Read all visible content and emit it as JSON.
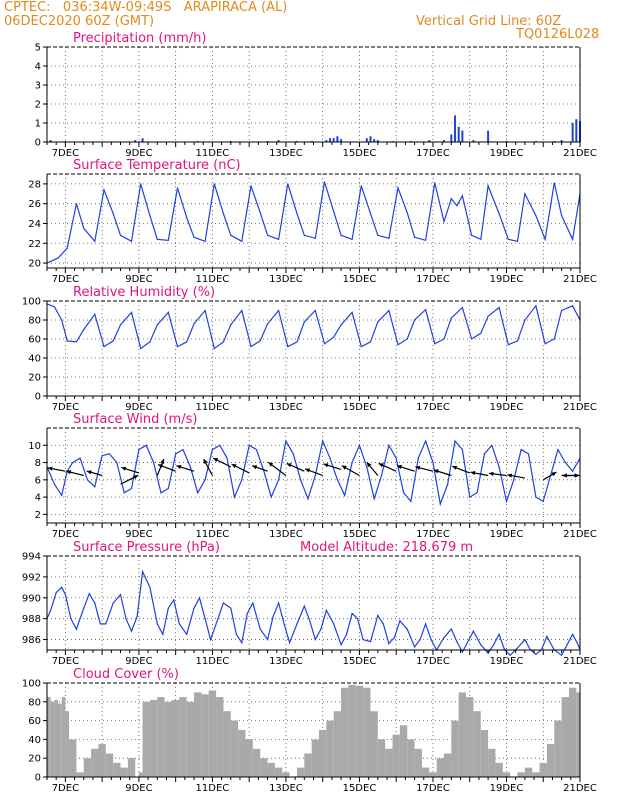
{
  "header": {
    "line1": "CPTEC:   036:34W-09:49S   ARAPIRACA (AL)",
    "line2": "06DEC2020 60Z (GMT)",
    "right1": "Vertical Grid Line: 60Z",
    "right2": "TQ0126L028"
  },
  "extra_label": "Model Altitude: 218.679 m",
  "colors": {
    "header": "#e08a1e",
    "title": "#e0147c",
    "line": "#2040e0",
    "cloud": "#a9a9a9"
  },
  "chart_data": [
    {
      "type": "bar",
      "title": "Precipitation (mm/h)",
      "ylim": [
        0,
        5
      ],
      "yticks": [
        0,
        1,
        2,
        3,
        4,
        5
      ],
      "xlim": [
        6.5,
        21
      ],
      "xticks": [
        "7DEC",
        "9DEC",
        "11DEC",
        "13DEC",
        "15DEC",
        "17DEC",
        "19DEC",
        "21DEC"
      ],
      "x": [
        6.6,
        7.0,
        8.9,
        9.1,
        10.6,
        11.5,
        12.5,
        12.8,
        13.3,
        13.7,
        14.1,
        14.2,
        14.3,
        14.4,
        14.5,
        15.2,
        15.3,
        15.4,
        15.5,
        15.9,
        16.4,
        16.9,
        17.3,
        17.5,
        17.6,
        17.7,
        17.8,
        18.1,
        18.5,
        19.0,
        19.8,
        20.3,
        20.5,
        20.8,
        20.9,
        21.0
      ],
      "values": [
        0.1,
        0.05,
        0.1,
        0.2,
        0.05,
        0.05,
        0.05,
        0.1,
        0.05,
        0.05,
        0.1,
        0.2,
        0.2,
        0.3,
        0.15,
        0.2,
        0.3,
        0.15,
        0.1,
        0.05,
        0.05,
        0.1,
        0.1,
        0.4,
        1.4,
        0.8,
        0.6,
        0.1,
        0.6,
        0.05,
        0.05,
        0.05,
        0.1,
        1.0,
        1.2,
        1.1
      ]
    },
    {
      "type": "line",
      "title": "Surface Temperature (nC)",
      "ylim": [
        19.5,
        29
      ],
      "yticks": [
        20,
        22,
        24,
        26,
        28
      ],
      "xlim": [
        6.5,
        21
      ],
      "xticks": [
        "7DEC",
        "9DEC",
        "11DEC",
        "13DEC",
        "15DEC",
        "17DEC",
        "19DEC",
        "21DEC"
      ],
      "x": [
        6.5,
        6.8,
        7.05,
        7.3,
        7.5,
        7.8,
        8.05,
        8.3,
        8.5,
        8.8,
        9.05,
        9.3,
        9.5,
        9.8,
        10.05,
        10.3,
        10.5,
        10.8,
        11.05,
        11.3,
        11.5,
        11.8,
        12.05,
        12.3,
        12.5,
        12.8,
        13.05,
        13.3,
        13.5,
        13.8,
        14.05,
        14.3,
        14.5,
        14.8,
        15.05,
        15.3,
        15.5,
        15.8,
        16.05,
        16.3,
        16.5,
        16.8,
        17.05,
        17.3,
        17.5,
        17.65,
        17.8,
        18.05,
        18.3,
        18.5,
        18.8,
        19.05,
        19.3,
        19.5,
        19.8,
        20.05,
        20.3,
        20.5,
        20.8,
        21.0
      ],
      "values": [
        20.0,
        20.5,
        21.5,
        26.0,
        23.5,
        22.2,
        27.4,
        25.0,
        22.8,
        22.2,
        28.0,
        24.8,
        22.4,
        22.3,
        27.6,
        24.6,
        22.6,
        22.2,
        28.0,
        25.0,
        22.8,
        22.2,
        27.8,
        25.1,
        22.8,
        22.4,
        28.0,
        25.0,
        22.8,
        22.5,
        28.2,
        25.2,
        22.8,
        22.4,
        27.8,
        25.0,
        22.8,
        22.5,
        27.6,
        25.1,
        22.6,
        22.3,
        28.1,
        24.2,
        26.5,
        25.8,
        26.8,
        22.8,
        22.4,
        27.8,
        25.0,
        22.4,
        22.2,
        27.0,
        24.8,
        22.4,
        28.1,
        24.8,
        22.4,
        27.0
      ]
    },
    {
      "type": "line",
      "title": "Relative Humidity (%)",
      "ylim": [
        0,
        100
      ],
      "yticks": [
        0,
        20,
        40,
        60,
        80,
        100
      ],
      "xlim": [
        6.5,
        21
      ],
      "xticks": [
        "7DEC",
        "9DEC",
        "11DEC",
        "13DEC",
        "15DEC",
        "17DEC",
        "19DEC",
        "21DEC"
      ],
      "x": [
        6.5,
        6.7,
        6.9,
        7.05,
        7.3,
        7.5,
        7.8,
        8.05,
        8.3,
        8.5,
        8.8,
        9.05,
        9.3,
        9.5,
        9.8,
        10.05,
        10.3,
        10.5,
        10.8,
        11.05,
        11.3,
        11.5,
        11.8,
        12.05,
        12.3,
        12.5,
        12.8,
        13.05,
        13.3,
        13.5,
        13.8,
        14.05,
        14.3,
        14.5,
        14.8,
        15.05,
        15.3,
        15.5,
        15.8,
        16.05,
        16.3,
        16.5,
        16.8,
        17.05,
        17.3,
        17.5,
        17.8,
        18.05,
        18.3,
        18.5,
        18.8,
        19.05,
        19.3,
        19.5,
        19.8,
        20.05,
        20.3,
        20.5,
        20.8,
        21.0
      ],
      "values": [
        97,
        94,
        80,
        58,
        57,
        70,
        86,
        52,
        58,
        75,
        88,
        50,
        57,
        75,
        88,
        52,
        57,
        76,
        90,
        50,
        57,
        75,
        90,
        52,
        58,
        76,
        90,
        52,
        57,
        78,
        90,
        55,
        62,
        75,
        88,
        52,
        57,
        78,
        90,
        54,
        60,
        80,
        91,
        55,
        60,
        82,
        93,
        60,
        66,
        84,
        93,
        54,
        58,
        80,
        95,
        55,
        60,
        90,
        95,
        80
      ]
    },
    {
      "type": "line",
      "title": "Surface Wind (m/s)",
      "ylim": [
        1,
        12
      ],
      "yticks": [
        2,
        4,
        6,
        8,
        10
      ],
      "xlim": [
        6.5,
        21
      ],
      "xticks": [
        "7DEC",
        "9DEC",
        "11DEC",
        "13DEC",
        "15DEC",
        "17DEC",
        "19DEC",
        "21DEC"
      ],
      "x": [
        6.5,
        6.7,
        6.9,
        7.05,
        7.2,
        7.4,
        7.6,
        7.8,
        8.0,
        8.2,
        8.4,
        8.6,
        8.8,
        9.0,
        9.2,
        9.4,
        9.6,
        9.8,
        10.0,
        10.2,
        10.4,
        10.6,
        10.8,
        11.0,
        11.2,
        11.4,
        11.6,
        11.8,
        12.0,
        12.2,
        12.4,
        12.6,
        12.8,
        13.0,
        13.2,
        13.4,
        13.6,
        13.8,
        14.0,
        14.2,
        14.4,
        14.6,
        14.8,
        15.0,
        15.2,
        15.4,
        15.6,
        15.8,
        16.0,
        16.2,
        16.4,
        16.6,
        16.8,
        17.0,
        17.2,
        17.4,
        17.6,
        17.8,
        18.0,
        18.2,
        18.4,
        18.6,
        18.8,
        19.0,
        19.2,
        19.4,
        19.6,
        19.8,
        20.0,
        20.2,
        20.4,
        20.6,
        20.8,
        21.0
      ],
      "values": [
        7.5,
        5.5,
        4.2,
        7.0,
        8.0,
        8.5,
        6.0,
        5.2,
        8.8,
        9.0,
        8.0,
        4.5,
        5.0,
        9.5,
        10.0,
        8.0,
        4.5,
        5.0,
        9.0,
        9.5,
        7.5,
        4.5,
        6.0,
        9.5,
        10.0,
        8.5,
        4.0,
        6.0,
        10.0,
        9.5,
        7.0,
        4.0,
        6.0,
        10.5,
        9.0,
        6.0,
        3.8,
        6.5,
        10.5,
        8.5,
        6.0,
        4.2,
        8.0,
        10.0,
        7.5,
        3.8,
        6.5,
        10.0,
        8.5,
        4.5,
        3.5,
        8.5,
        10.5,
        8.0,
        3.2,
        5.5,
        10.5,
        9.5,
        4.0,
        4.5,
        9.0,
        10.0,
        7.5,
        3.5,
        6.0,
        9.5,
        9.0,
        4.0,
        3.5,
        6.5,
        9.5,
        8.0,
        7.0,
        8.5
      ],
      "vectors": [
        {
          "x": 7.0,
          "y": 7.0,
          "dx": -0.8,
          "dy": 0.3
        },
        {
          "x": 7.5,
          "y": 6.5,
          "dx": -0.8,
          "dy": 0.4
        },
        {
          "x": 8.0,
          "y": 6.5,
          "dx": -0.7,
          "dy": 0.4
        },
        {
          "x": 8.5,
          "y": 5.5,
          "dx": 0.8,
          "dy": 0.8
        },
        {
          "x": 9.0,
          "y": 6.8,
          "dx": -0.8,
          "dy": 0.5
        },
        {
          "x": 9.5,
          "y": 6.5,
          "dx": 0.3,
          "dy": 1.5
        },
        {
          "x": 10.0,
          "y": 7.0,
          "dx": -0.8,
          "dy": 0.6
        },
        {
          "x": 10.5,
          "y": 7.0,
          "dx": -0.8,
          "dy": 0.5
        },
        {
          "x": 11.0,
          "y": 6.5,
          "dx": -0.4,
          "dy": 1.5
        },
        {
          "x": 11.5,
          "y": 7.5,
          "dx": -0.8,
          "dy": 0.8
        },
        {
          "x": 12.0,
          "y": 6.8,
          "dx": -0.8,
          "dy": 0.8
        },
        {
          "x": 12.5,
          "y": 7.0,
          "dx": -0.7,
          "dy": 0.5
        },
        {
          "x": 13.0,
          "y": 6.5,
          "dx": -0.8,
          "dy": 1.2
        },
        {
          "x": 13.5,
          "y": 7.0,
          "dx": -0.8,
          "dy": 0.7
        },
        {
          "x": 14.0,
          "y": 6.5,
          "dx": -0.8,
          "dy": 0.6
        },
        {
          "x": 14.5,
          "y": 7.2,
          "dx": -0.8,
          "dy": 0.5
        },
        {
          "x": 15.0,
          "y": 6.5,
          "dx": -0.8,
          "dy": 0.9
        },
        {
          "x": 15.5,
          "y": 6.5,
          "dx": -0.5,
          "dy": 1.2
        },
        {
          "x": 16.0,
          "y": 7.0,
          "dx": -0.8,
          "dy": 0.7
        },
        {
          "x": 16.5,
          "y": 7.0,
          "dx": -0.8,
          "dy": 0.5
        },
        {
          "x": 17.0,
          "y": 7.0,
          "dx": -0.8,
          "dy": 0.4
        },
        {
          "x": 17.5,
          "y": 6.5,
          "dx": -0.8,
          "dy": 0.5
        },
        {
          "x": 18.0,
          "y": 6.8,
          "dx": -0.8,
          "dy": 0.6
        },
        {
          "x": 18.5,
          "y": 6.5,
          "dx": -0.8,
          "dy": 0.3
        },
        {
          "x": 19.0,
          "y": 6.5,
          "dx": -0.8,
          "dy": 0.2
        },
        {
          "x": 19.5,
          "y": 6.2,
          "dx": -0.8,
          "dy": 0.3
        },
        {
          "x": 20.0,
          "y": 6.0,
          "dx": 0.6,
          "dy": 0.7
        },
        {
          "x": 20.5,
          "y": 6.5,
          "dx": 0.8,
          "dy": 0.0
        },
        {
          "x": 21.0,
          "y": 6.5,
          "dx": -0.8,
          "dy": 0.0
        }
      ]
    },
    {
      "type": "line",
      "title": "Surface Pressure (hPa)",
      "ylim": [
        985,
        994
      ],
      "yticks": [
        986,
        988,
        990,
        992,
        994
      ],
      "xlim": [
        6.5,
        21
      ],
      "xticks": [
        "7DEC",
        "9DEC",
        "11DEC",
        "13DEC",
        "15DEC",
        "17DEC",
        "19DEC",
        "21DEC"
      ],
      "x": [
        6.5,
        6.6,
        6.75,
        6.9,
        7.0,
        7.15,
        7.3,
        7.5,
        7.65,
        7.8,
        7.95,
        8.1,
        8.3,
        8.5,
        8.65,
        8.8,
        8.95,
        9.1,
        9.3,
        9.5,
        9.65,
        9.8,
        9.95,
        10.1,
        10.3,
        10.5,
        10.65,
        10.8,
        10.95,
        11.1,
        11.3,
        11.5,
        11.65,
        11.8,
        11.95,
        12.1,
        12.3,
        12.5,
        12.65,
        12.8,
        12.95,
        13.1,
        13.3,
        13.5,
        13.65,
        13.8,
        13.95,
        14.1,
        14.3,
        14.5,
        14.65,
        14.8,
        14.95,
        15.1,
        15.3,
        15.5,
        15.65,
        15.8,
        15.95,
        16.1,
        16.3,
        16.5,
        16.65,
        16.8,
        16.95,
        17.1,
        17.3,
        17.5,
        17.65,
        17.8,
        17.95,
        18.1,
        18.3,
        18.5,
        18.65,
        18.8,
        18.95,
        19.1,
        19.3,
        19.5,
        19.65,
        19.8,
        19.95,
        20.1,
        20.3,
        20.5,
        20.65,
        20.8,
        20.95,
        21.0
      ],
      "values": [
        988.0,
        988.8,
        990.5,
        991.0,
        990.3,
        988.0,
        987.0,
        989.0,
        990.4,
        989.5,
        987.5,
        987.5,
        989.5,
        990.3,
        988.0,
        986.8,
        988.2,
        992.5,
        991.0,
        987.5,
        986.5,
        989.0,
        989.8,
        987.5,
        986.5,
        989.0,
        990.0,
        988.0,
        986.0,
        987.5,
        989.5,
        989.0,
        986.5,
        985.7,
        988.5,
        989.5,
        987.0,
        986.0,
        988.2,
        989.5,
        987.5,
        985.7,
        987.5,
        989.2,
        987.8,
        986.0,
        987.0,
        988.8,
        987.5,
        985.5,
        986.5,
        988.5,
        988.0,
        986.0,
        985.8,
        988.3,
        987.5,
        985.6,
        986.2,
        987.8,
        987.0,
        985.3,
        986.0,
        987.5,
        986.0,
        985.0,
        986.2,
        987.0,
        985.8,
        984.8,
        985.8,
        986.8,
        985.5,
        984.7,
        985.5,
        986.5,
        985.0,
        984.5,
        985.2,
        986.0,
        985.0,
        984.6,
        985.0,
        986.3,
        985.0,
        984.5,
        985.5,
        986.5,
        985.5,
        985.0
      ]
    },
    {
      "type": "area",
      "title": "Cloud Cover (%)",
      "ylim": [
        0,
        100
      ],
      "yticks": [
        0,
        20,
        40,
        60,
        80,
        100
      ],
      "xlim": [
        6.5,
        21
      ],
      "xticks": [
        "7DEC",
        "9DEC",
        "11DEC",
        "13DEC",
        "15DEC",
        "17DEC",
        "19DEC",
        "21DEC"
      ],
      "x": [
        6.5,
        6.6,
        6.7,
        6.8,
        6.9,
        7.0,
        7.1,
        7.3,
        7.5,
        7.7,
        7.9,
        8.1,
        8.3,
        8.5,
        8.7,
        8.9,
        9.0,
        9.1,
        9.3,
        9.5,
        9.7,
        9.9,
        10.1,
        10.3,
        10.5,
        10.7,
        10.9,
        11.1,
        11.3,
        11.5,
        11.7,
        11.9,
        12.1,
        12.3,
        12.5,
        12.7,
        12.9,
        13.1,
        13.3,
        13.5,
        13.7,
        13.9,
        14.1,
        14.3,
        14.5,
        14.7,
        14.9,
        15.1,
        15.3,
        15.5,
        15.7,
        15.9,
        16.1,
        16.3,
        16.5,
        16.7,
        16.9,
        17.1,
        17.3,
        17.5,
        17.7,
        17.9,
        18.1,
        18.3,
        18.5,
        18.7,
        18.9,
        19.1,
        19.3,
        19.5,
        19.7,
        19.9,
        20.1,
        20.3,
        20.5,
        20.7,
        20.9,
        21.0
      ],
      "values": [
        85,
        80,
        82,
        78,
        85,
        70,
        40,
        5,
        20,
        30,
        35,
        25,
        15,
        10,
        20,
        0,
        5,
        80,
        82,
        85,
        80,
        82,
        85,
        80,
        90,
        88,
        92,
        85,
        70,
        60,
        50,
        40,
        30,
        20,
        15,
        10,
        5,
        0,
        10,
        25,
        40,
        50,
        60,
        70,
        95,
        98,
        97,
        95,
        70,
        40,
        30,
        45,
        55,
        40,
        30,
        10,
        5,
        20,
        25,
        60,
        90,
        85,
        70,
        50,
        30,
        15,
        5,
        0,
        5,
        10,
        5,
        15,
        35,
        60,
        85,
        95,
        90,
        85
      ]
    }
  ]
}
